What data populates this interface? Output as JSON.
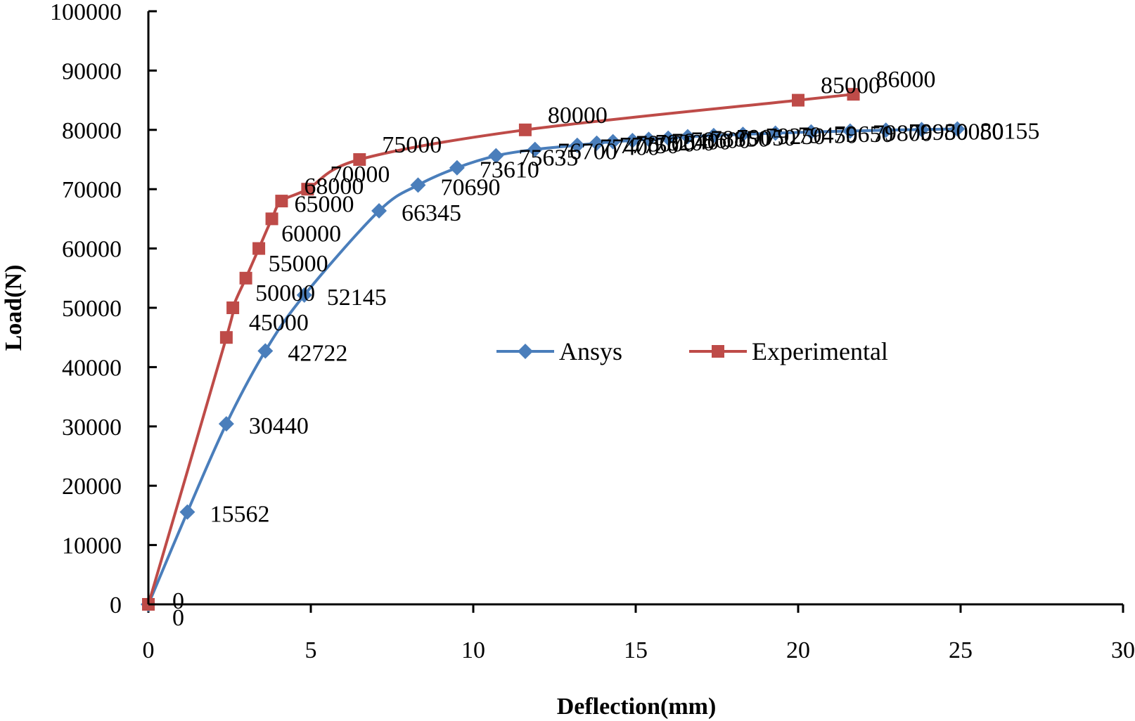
{
  "chart_data": {
    "type": "line",
    "title": "",
    "xlabel": "Deflection(mm)",
    "ylabel": "Load(N)",
    "xlim": [
      0,
      30
    ],
    "ylim": [
      0,
      100000
    ],
    "x_ticks": [
      0,
      5,
      10,
      15,
      20,
      25,
      30
    ],
    "y_ticks": [
      0,
      10000,
      20000,
      30000,
      40000,
      50000,
      60000,
      70000,
      80000,
      90000,
      100000
    ],
    "grid": false,
    "legend_position": "center",
    "series": [
      {
        "name": "Ansys",
        "color": "#4a7ebb",
        "marker": "diamond",
        "x": [
          0,
          1.2,
          2.4,
          3.6,
          4.8,
          7.1,
          8.3,
          9.5,
          10.7,
          11.9,
          13.2,
          13.8,
          14.3,
          14.9,
          15.4,
          16.0,
          16.6,
          17.4,
          18.3,
          19.3,
          20.4,
          21.6,
          22.7,
          23.8,
          24.9
        ],
        "y": [
          0,
          15562,
          30440,
          42722,
          52145,
          66345,
          70690,
          73610,
          75635,
          76700,
          77400,
          77750,
          78000,
          78200,
          78400,
          78600,
          78850,
          79050,
          79250,
          79450,
          79650,
          79800,
          79950,
          80050,
          80155
        ],
        "labels": [
          "0",
          "15562",
          "30440",
          "42722",
          "52145",
          "66345",
          "70690",
          "73610",
          "75635",
          "76700",
          "77400",
          "77750",
          "78000",
          "78200",
          "78400",
          "78600",
          "78850",
          "79050",
          "79250",
          "79450",
          "79650",
          "79800",
          "79950",
          "80050",
          "80155"
        ]
      },
      {
        "name": "Experimental",
        "color": "#be4b48",
        "marker": "square",
        "x": [
          0,
          2.4,
          2.6,
          3.0,
          3.4,
          3.8,
          4.1,
          4.9,
          6.5,
          11.6,
          20.0,
          21.7
        ],
        "y": [
          0,
          45000,
          50000,
          55000,
          60000,
          65000,
          68000,
          70000,
          75000,
          80000,
          85000,
          86000
        ],
        "labels": [
          "0",
          "45000",
          "50000",
          "55000",
          "60000",
          "65000",
          "68000",
          "70000",
          "75000",
          "80000",
          "85000",
          "86000"
        ]
      }
    ]
  }
}
